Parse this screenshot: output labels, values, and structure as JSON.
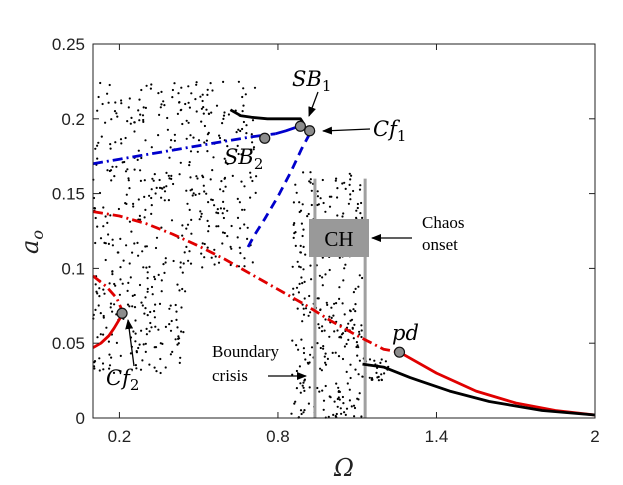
{
  "chart_data": {
    "type": "line",
    "xlabel": "Ω",
    "ylabel": "a",
    "ylabel_sub": "o",
    "xlim": [
      0.1,
      2.0
    ],
    "ylim": [
      0,
      0.25
    ],
    "xticks": [
      0.2,
      0.8,
      1.4,
      2
    ],
    "xtick_labels": [
      "0.2",
      "0.8",
      "1.4",
      "2"
    ],
    "yticks": [
      0,
      0.05,
      0.1,
      0.15,
      0.2,
      0.25
    ],
    "ytick_labels": [
      "0",
      "0.05",
      "0.1",
      "0.15",
      "0.2",
      "0.25"
    ],
    "grid": false,
    "series": [
      {
        "style": "solid",
        "color": "#000000",
        "points": [
          [
            0.62,
            0.206
          ],
          [
            0.66,
            0.202
          ],
          [
            0.7,
            0.201
          ],
          [
            0.76,
            0.2
          ],
          [
            0.82,
            0.2
          ],
          [
            0.885,
            0.2
          ],
          [
            0.9,
            0.196
          ]
        ]
      },
      {
        "style": "solid",
        "color": "#0000cc",
        "points": [
          [
            0.79,
            0.19
          ],
          [
            0.83,
            0.192
          ],
          [
            0.88,
            0.195
          ]
        ]
      },
      {
        "style": "dashdot",
        "color": "#0000cc",
        "points": [
          [
            0.1,
            0.17
          ],
          [
            0.2,
            0.173
          ],
          [
            0.3,
            0.176
          ],
          [
            0.4,
            0.179
          ],
          [
            0.5,
            0.182
          ],
          [
            0.6,
            0.185
          ],
          [
            0.7,
            0.188
          ],
          [
            0.79,
            0.19
          ]
        ]
      },
      {
        "style": "dashed",
        "color": "#0000cc",
        "points": [
          [
            0.92,
            0.19
          ],
          [
            0.89,
            0.18
          ],
          [
            0.85,
            0.165
          ],
          [
            0.8,
            0.148
          ],
          [
            0.75,
            0.133
          ],
          [
            0.71,
            0.122
          ],
          [
            0.68,
            0.112
          ]
        ]
      },
      {
        "style": "dashdot",
        "color": "#e00000",
        "points": [
          [
            0.1,
            0.138
          ],
          [
            0.2,
            0.135
          ],
          [
            0.3,
            0.13
          ],
          [
            0.4,
            0.123
          ],
          [
            0.5,
            0.115
          ],
          [
            0.6,
            0.106
          ],
          [
            0.7,
            0.096
          ],
          [
            0.8,
            0.086
          ],
          [
            0.9,
            0.076
          ],
          [
            1.0,
            0.065
          ],
          [
            1.1,
            0.055
          ],
          [
            1.2,
            0.046
          ],
          [
            1.26,
            0.044
          ]
        ]
      },
      {
        "style": "solid",
        "color": "#e00000",
        "points": [
          [
            1.26,
            0.044
          ],
          [
            1.4,
            0.03
          ],
          [
            1.55,
            0.018
          ],
          [
            1.7,
            0.01
          ],
          [
            1.85,
            0.005
          ],
          [
            2.0,
            0.002
          ]
        ]
      },
      {
        "style": "solid",
        "color": "#e00000",
        "points": [
          [
            0.1,
            0.047
          ],
          [
            0.13,
            0.05
          ],
          [
            0.16,
            0.055
          ],
          [
            0.18,
            0.06
          ],
          [
            0.2,
            0.066
          ],
          [
            0.215,
            0.07
          ]
        ]
      },
      {
        "style": "dashdot",
        "color": "#e00000",
        "points": [
          [
            0.1,
            0.095
          ],
          [
            0.15,
            0.088
          ],
          [
            0.19,
            0.08
          ],
          [
            0.215,
            0.07
          ]
        ]
      },
      {
        "style": "solid",
        "color": "#000000",
        "points": [
          [
            1.12,
            0.036
          ],
          [
            1.2,
            0.034
          ],
          [
            1.3,
            0.027
          ],
          [
            1.45,
            0.018
          ],
          [
            1.6,
            0.011
          ],
          [
            1.8,
            0.005
          ],
          [
            2.0,
            0.002
          ]
        ]
      }
    ],
    "markers": [
      {
        "label": "SB1",
        "x": 0.885,
        "y": 0.195
      },
      {
        "label": "Cf1",
        "x": 0.92,
        "y": 0.192
      },
      {
        "label": "SB2",
        "x": 0.75,
        "y": 0.187
      },
      {
        "label": "Cf2",
        "x": 0.21,
        "y": 0.07
      },
      {
        "label": "pd",
        "x": 1.26,
        "y": 0.044
      }
    ],
    "chaos_band": [
      0.94,
      1.13
    ],
    "scatter_clusters": [
      {
        "xr": [
          0.1,
          0.72
        ],
        "yr": [
          0.1,
          0.225
        ],
        "n": 380
      },
      {
        "xr": [
          0.1,
          0.45
        ],
        "yr": [
          0.03,
          0.1
        ],
        "n": 150
      },
      {
        "xr": [
          0.85,
          1.12
        ],
        "yr": [
          0.0,
          0.165
        ],
        "n": 320
      },
      {
        "xr": [
          1.12,
          1.22
        ],
        "yr": [
          0.025,
          0.04
        ],
        "n": 30
      }
    ]
  },
  "annotations": {
    "sb1": "SB",
    "sb1_sub": "1",
    "cf1": "Cf",
    "cf1_sub": "1",
    "sb2": "SB",
    "sb2_sub": "2",
    "cf2": "Cf",
    "cf2_sub": "2",
    "pd": "pd",
    "ch": "CH",
    "chaos_line1": "Chaos",
    "chaos_line2": "onset",
    "boundary_line1": "Boundary",
    "boundary_line2": "crisis"
  }
}
